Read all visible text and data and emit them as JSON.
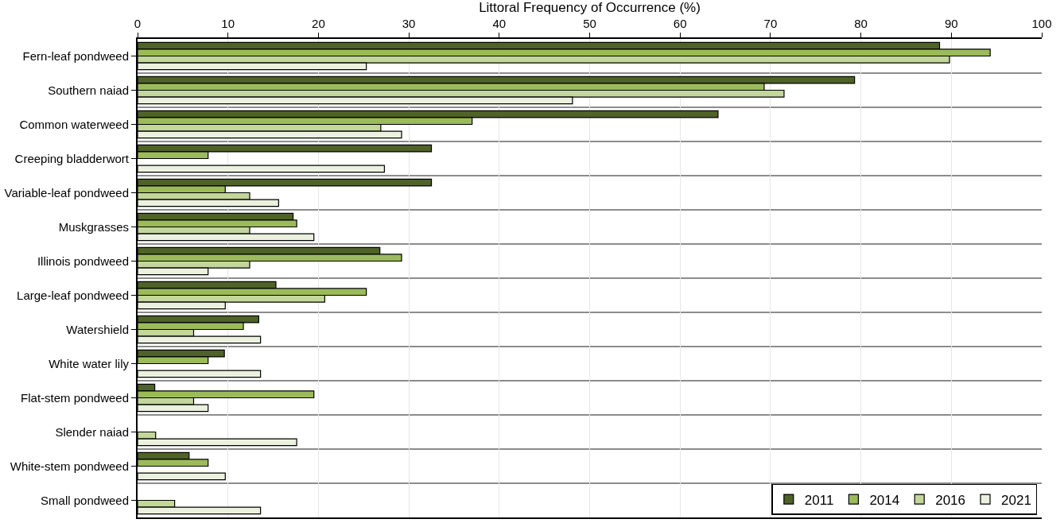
{
  "chart_data": {
    "type": "bar",
    "orientation": "horizontal",
    "xlabel": "Littoral Frequency of Occurrence (%)",
    "categories": [
      "Fern-leaf pondweed",
      "Southern naiad",
      "Common waterweed",
      "Creeping bladderwort",
      "Variable-leaf pondweed",
      "Muskgrasses",
      "Illinois pondweed",
      "Large-leaf pondweed",
      "Watershield",
      "White water lily",
      "Flat-stem pondweed",
      "Slender naiad",
      "White-stem pondweed",
      "Small pondweed"
    ],
    "series": [
      {
        "name": "2011",
        "color": "#4f6228",
        "values": [
          88.7,
          79.3,
          64.2,
          32.5,
          32.5,
          17.2,
          26.8,
          15.3,
          13.4,
          9.6,
          1.9,
          null,
          5.7,
          null
        ]
      },
      {
        "name": "2014",
        "color": "#9bbb59",
        "values": [
          94.3,
          69.3,
          37.0,
          7.8,
          9.7,
          17.6,
          29.2,
          25.3,
          11.7,
          7.8,
          19.5,
          null,
          7.8,
          null
        ]
      },
      {
        "name": "2016",
        "color": "#c3d69b",
        "values": [
          89.8,
          71.5,
          26.9,
          null,
          12.4,
          12.4,
          12.4,
          20.7,
          6.2,
          null,
          6.2,
          2.0,
          null,
          4.1
        ]
      },
      {
        "name": "2021",
        "color": "#ebf1de",
        "values": [
          25.3,
          48.1,
          29.2,
          27.3,
          15.6,
          19.5,
          7.8,
          9.7,
          13.6,
          13.6,
          7.8,
          17.6,
          9.7,
          13.6
        ]
      }
    ],
    "xlim": [
      0,
      100
    ],
    "xticks": [
      0,
      10,
      20,
      30,
      40,
      50,
      60,
      70,
      80,
      90,
      100
    ],
    "grid": true,
    "legend": "bottom right"
  }
}
